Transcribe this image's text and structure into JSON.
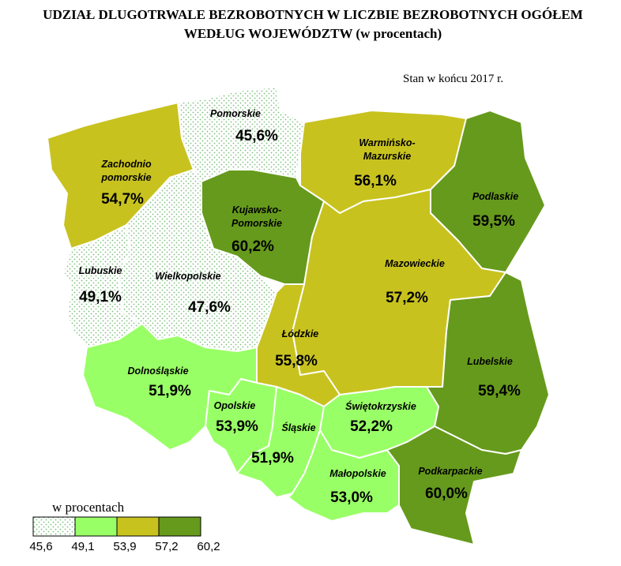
{
  "title": [
    "UDZIAŁ DLUGOTRWALE BEZROBOTNYCH W LICZBIE BEZROBOTNYCH OGÓŁEM",
    "WEDŁUG WOJEWÓDZTW (w procentach)"
  ],
  "note": "Stan w końcu 2017 r.",
  "map": {
    "regions": [
      {
        "name_lines": [
          "Pomorskie"
        ],
        "value": 45.6,
        "value_label": "45,6%"
      },
      {
        "name_lines": [
          "Zachodnio",
          "pomorskie"
        ],
        "value": 54.7,
        "value_label": "54,7%"
      },
      {
        "name_lines": [
          "Warmińsko-",
          "Mazurskie"
        ],
        "value": 56.1,
        "value_label": "56,1%"
      },
      {
        "name_lines": [
          "Podlaskie"
        ],
        "value": 59.5,
        "value_label": "59,5%"
      },
      {
        "name_lines": [
          "Kujawsko-",
          "Pomorskie"
        ],
        "value": 60.2,
        "value_label": "60,2%"
      },
      {
        "name_lines": [
          "Lubuskie"
        ],
        "value": 49.1,
        "value_label": "49,1%"
      },
      {
        "name_lines": [
          "Wielkopolskie"
        ],
        "value": 47.6,
        "value_label": "47,6%"
      },
      {
        "name_lines": [
          "Mazowieckie"
        ],
        "value": 57.2,
        "value_label": "57,2%"
      },
      {
        "name_lines": [
          "Łódzkie"
        ],
        "value": 55.8,
        "value_label": "55,8%"
      },
      {
        "name_lines": [
          "Lubelskie"
        ],
        "value": 59.4,
        "value_label": "59,4%"
      },
      {
        "name_lines": [
          "Dolnośląskie"
        ],
        "value": 51.9,
        "value_label": "51,9%"
      },
      {
        "name_lines": [
          "Opolskie"
        ],
        "value": 53.9,
        "value_label": "53,9%"
      },
      {
        "name_lines": [
          "Śląskie"
        ],
        "value": 51.9,
        "value_label": "51,9%"
      },
      {
        "name_lines": [
          "Świętokrzyskie"
        ],
        "value": 52.2,
        "value_label": "52,2%"
      },
      {
        "name_lines": [
          "Małopolskie"
        ],
        "value": 53.0,
        "value_label": "53,0%"
      },
      {
        "name_lines": [
          "Podkarpackie"
        ],
        "value": 60.0,
        "value_label": "60,0%"
      }
    ],
    "legend": {
      "title": "w procentach",
      "breaks": [
        {
          "value": 45.6,
          "label": "45,6"
        },
        {
          "value": 49.1,
          "label": "49,1"
        },
        {
          "value": 53.9,
          "label": "53,9"
        },
        {
          "value": 57.2,
          "label": "57,2"
        },
        {
          "value": 60.2,
          "label": "60,2"
        }
      ],
      "colors": [
        "#ffffff",
        "#99ff66",
        "#c8c21f",
        "#669a1c"
      ]
    }
  }
}
